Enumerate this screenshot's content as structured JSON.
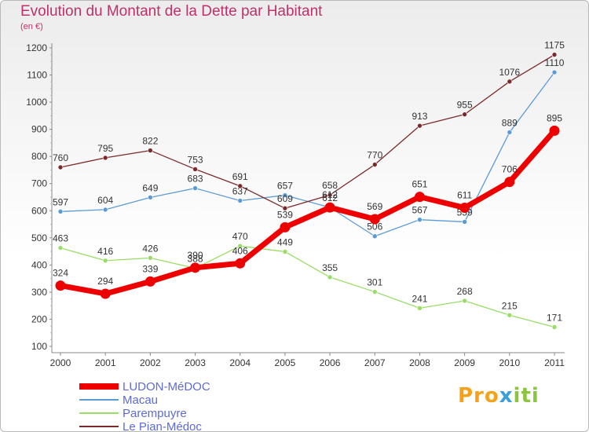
{
  "title": "Evolution du Montant de la Dette par Habitant",
  "subtitle": "(en €)",
  "logo": {
    "part1": "Pro",
    "part2": "x",
    "part3": "iti"
  },
  "chart_data": {
    "type": "line",
    "title": "Evolution du Montant de la Dette par Habitant",
    "subtitle": "(en €)",
    "xlabel": "",
    "ylabel": "",
    "x": [
      "2000",
      "2001",
      "2002",
      "2003",
      "2004",
      "2005",
      "2006",
      "2007",
      "2008",
      "2009",
      "2010",
      "2011"
    ],
    "ylim": [
      100,
      1200
    ],
    "yticks": [
      100,
      200,
      300,
      400,
      500,
      600,
      700,
      800,
      900,
      1000,
      1100,
      1200
    ],
    "grid": false,
    "legend_position": "bottom-left",
    "series": [
      {
        "name": "LUDON-MéDOC",
        "color": "#ee0000",
        "emphasis": true,
        "values": [
          324,
          294,
          339,
          390,
          406,
          539,
          612,
          569,
          651,
          611,
          706,
          895
        ]
      },
      {
        "name": "Macau",
        "color": "#5b9bd5",
        "emphasis": false,
        "values": [
          597,
          604,
          649,
          683,
          637,
          657,
          612,
          506,
          567,
          559,
          889,
          1110
        ]
      },
      {
        "name": "Parempuyre",
        "color": "#99dd66",
        "emphasis": false,
        "values": [
          463,
          416,
          426,
          388,
          470,
          449,
          355,
          301,
          241,
          268,
          215,
          171
        ]
      },
      {
        "name": "Le Pian-Médoc",
        "color": "#7a2a2a",
        "emphasis": false,
        "values": [
          760,
          795,
          822,
          753,
          691,
          609,
          658,
          770,
          913,
          955,
          1076,
          1175
        ]
      }
    ]
  }
}
